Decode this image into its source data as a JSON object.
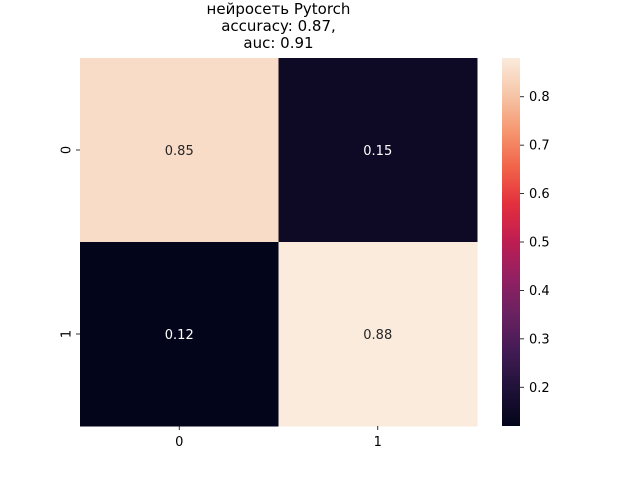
{
  "chart_data": {
    "type": "heatmap",
    "title_lines": [
      "нейросеть Pytorch",
      "accuracy: 0.87,",
      "auc: 0.91"
    ],
    "xlabel": "",
    "ylabel": "",
    "x_categories": [
      "0",
      "1"
    ],
    "y_categories": [
      "0",
      "1"
    ],
    "values": [
      [
        0.85,
        0.15
      ],
      [
        0.12,
        0.88
      ]
    ],
    "cell_labels": [
      [
        "0.85",
        "0.15"
      ],
      [
        "0.12",
        "0.88"
      ]
    ],
    "colorbar": {
      "range": [
        0.12,
        0.88
      ],
      "ticks": [
        0.2,
        0.3,
        0.4,
        0.5,
        0.6,
        0.7,
        0.8
      ],
      "tick_labels": [
        "0.2",
        "0.3",
        "0.4",
        "0.5",
        "0.6",
        "0.7",
        "0.8"
      ],
      "placement": "right"
    },
    "colormap": "rocket",
    "colors": {
      "low": "#03051a",
      "high": "#faebdd",
      "text_on_dark": "#ffffff",
      "text_on_light": "#262626"
    },
    "grid": false
  }
}
